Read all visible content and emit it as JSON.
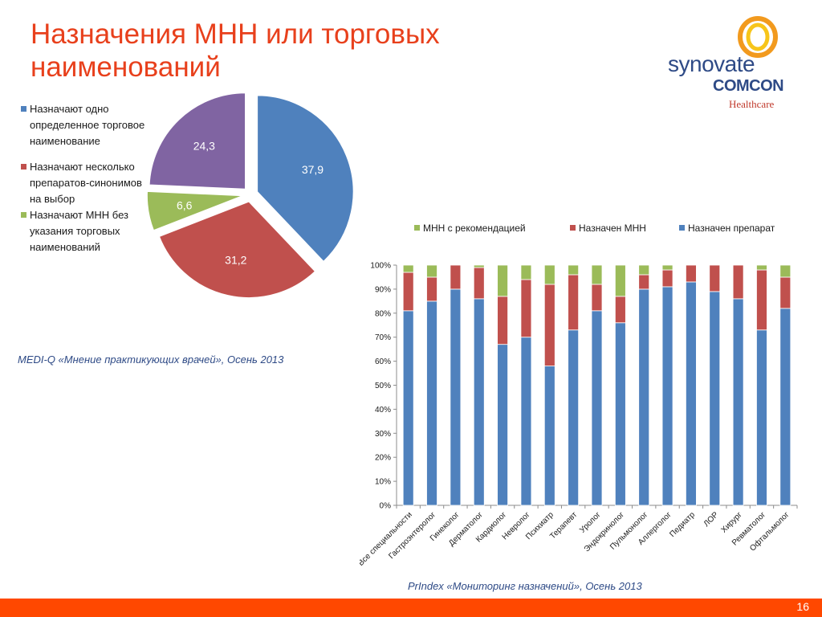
{
  "header": {
    "title": "Назначения МНН или торговых наименований"
  },
  "logo": {
    "brand": "synovate",
    "sub": "COMCON",
    "division": "Healthcare",
    "colors": {
      "ring_outer": "#f29a1e",
      "ring_inner": "#f7c51a",
      "text": "#2e4a86",
      "accent": "#c0392b"
    }
  },
  "pie_source": "MEDI-Q «Мнение практикующих врачей», Осень 2013",
  "bar_source": "PrIndex «Мониторинг назначений», Осень 2013",
  "page_number": "16",
  "chart_data": [
    {
      "type": "pie",
      "labels": [
        "Назначают одно определенное торговое наименование",
        "Назначают несколько препаратов-синонимов на выбор",
        "Назначают МНН без указания торговых наименований"
      ],
      "slices": [
        {
          "label": "Назначают одно определенное торговое наименование",
          "value": 37.9,
          "display": "37,9",
          "color": "#4f81bd"
        },
        {
          "label": "Назначают несколько препаратов-синонимов на выбор",
          "value": 31.2,
          "display": "31,2",
          "color": "#c0504d"
        },
        {
          "label": "Назначают МНН без указания торговых наименований",
          "value": 6.6,
          "display": "6,6",
          "color": "#9bbb59"
        },
        {
          "value": 24.3,
          "display": "24,3",
          "color": "#8064a2"
        }
      ],
      "legend_position": "left"
    },
    {
      "type": "bar",
      "stacked": true,
      "categories": [
        "Все специальности",
        "Гастроэнтеролог",
        "Гинеколог",
        "Дерматолог",
        "Кардиолог",
        "Невролог",
        "Психиатр",
        "Терапевт",
        "Уролог",
        "Эндокринолог",
        "Пульмонолог",
        "Аллерголог",
        "Педиатр",
        "ЛОР",
        "Хирург",
        "Ревматолог",
        "Офтальмолог"
      ],
      "series": [
        {
          "name": "Назначен препарат",
          "color": "#4f81bd",
          "values": [
            81,
            85,
            90,
            86,
            67,
            70,
            58,
            73,
            81,
            76,
            90,
            91,
            93,
            89,
            86,
            73,
            82
          ]
        },
        {
          "name": "Назначен МНН",
          "color": "#c0504d",
          "values": [
            16,
            10,
            10,
            13,
            20,
            24,
            34,
            23,
            11,
            11,
            6,
            7,
            7,
            11,
            14,
            25,
            13
          ]
        },
        {
          "name": "МНН с рекомендацией",
          "color": "#9bbb59",
          "values": [
            3,
            5,
            0,
            1,
            13,
            6,
            8,
            4,
            8,
            13,
            4,
            2,
            0,
            0,
            0,
            2,
            5
          ]
        }
      ],
      "legend_order": [
        "МНН с рекомендацией",
        "Назначен МНН",
        "Назначен препарат"
      ],
      "yticks": [
        "0%",
        "10%",
        "20%",
        "30%",
        "40%",
        "50%",
        "60%",
        "70%",
        "80%",
        "90%",
        "100%"
      ],
      "ylim": [
        0,
        100
      ],
      "grid": false,
      "legend_position": "top"
    }
  ]
}
